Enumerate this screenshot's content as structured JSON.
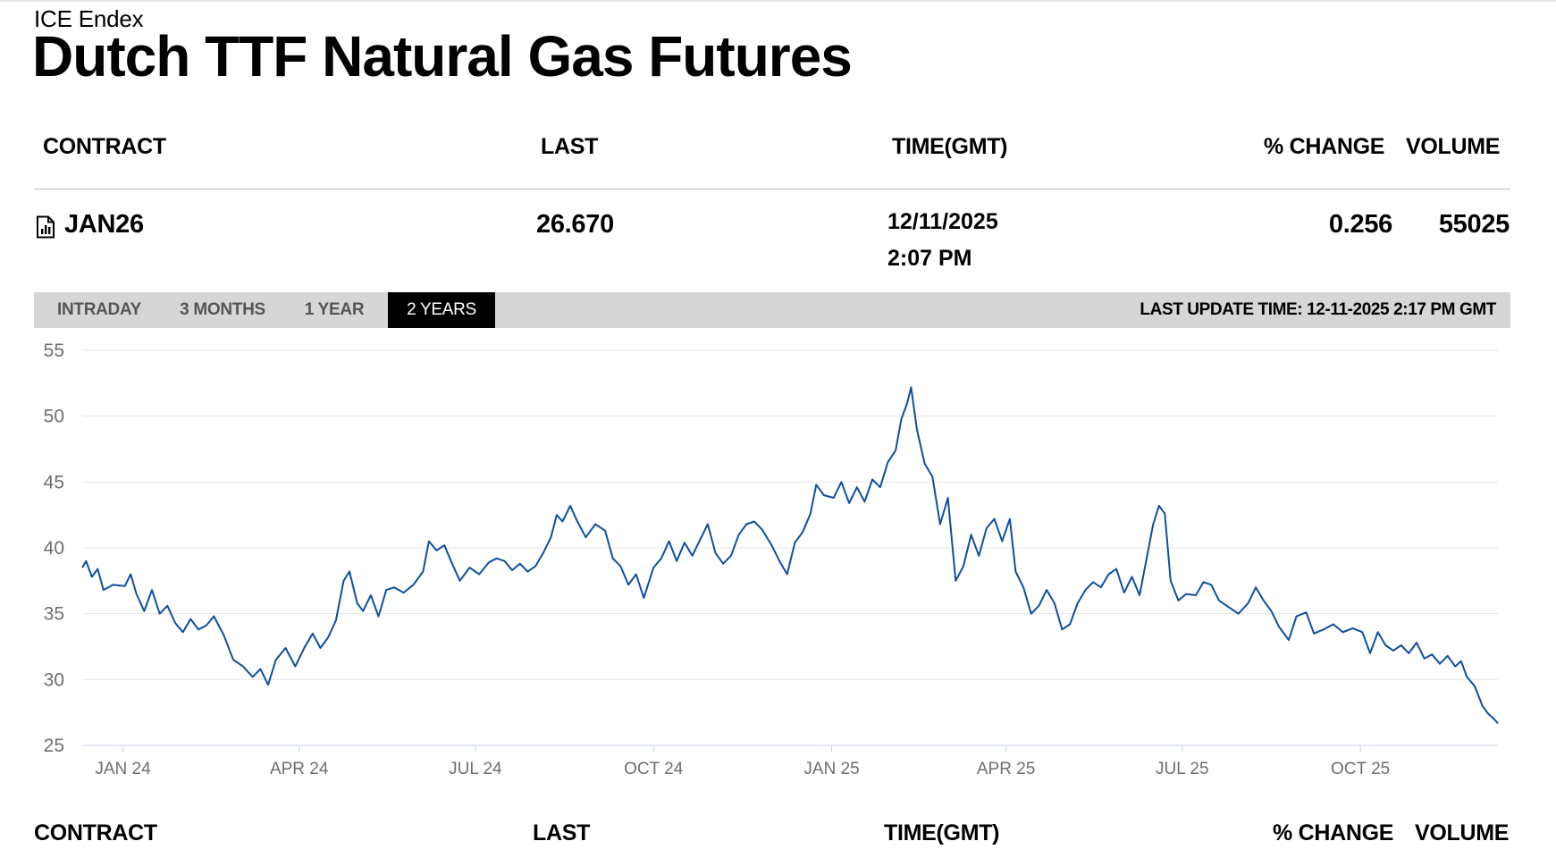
{
  "header": {
    "exchange": "ICE Endex",
    "title": "Dutch TTF Natural Gas Futures"
  },
  "table": {
    "columns": {
      "contract": "CONTRACT",
      "last": "LAST",
      "time": "TIME(GMT)",
      "change": "% CHANGE",
      "volume": "VOLUME"
    },
    "row": {
      "contract": "JAN26",
      "last": "26.670",
      "date": "12/11/2025",
      "time": "2:07 PM",
      "change": "0.256",
      "volume": "55025"
    }
  },
  "tabs": [
    {
      "label": "INTRADAY",
      "active": false
    },
    {
      "label": "3 MONTHS",
      "active": false
    },
    {
      "label": "1 YEAR",
      "active": false
    },
    {
      "label": "2 YEARS",
      "active": true
    }
  ],
  "last_update": "LAST UPDATE TIME: 12-11-2025 2:17 PM GMT",
  "footer_table": {
    "contract": "CONTRACT",
    "last": "LAST",
    "time": "TIME(GMT)",
    "change": "% CHANGE",
    "volume": "VOLUME"
  },
  "chart_data": {
    "type": "line",
    "ylim": [
      25,
      55
    ],
    "yticks": [
      55,
      50,
      45,
      40,
      35,
      30,
      25
    ],
    "xlim": [
      "2023-12-11",
      "2025-12-11"
    ],
    "xticks": [
      {
        "label": "JAN 24",
        "date": "2024-01-01"
      },
      {
        "label": "APR 24",
        "date": "2024-04-01"
      },
      {
        "label": "JUL 24",
        "date": "2024-07-01"
      },
      {
        "label": "OCT 24",
        "date": "2024-10-01"
      },
      {
        "label": "JAN 25",
        "date": "2025-01-01"
      },
      {
        "label": "APR 25",
        "date": "2025-04-01"
      },
      {
        "label": "JUL 25",
        "date": "2025-07-01"
      },
      {
        "label": "OCT 25",
        "date": "2025-10-01"
      }
    ],
    "grid": true,
    "line_color": "#0e4fa0",
    "series": [
      {
        "points": [
          [
            "2023-12-11",
            38.5
          ],
          [
            "2023-12-13",
            39.0
          ],
          [
            "2023-12-16",
            37.8
          ],
          [
            "2023-12-19",
            38.4
          ],
          [
            "2023-12-22",
            36.8
          ],
          [
            "2023-12-27",
            37.2
          ],
          [
            "2024-01-02",
            37.1
          ],
          [
            "2024-01-05",
            38.0
          ],
          [
            "2024-01-08",
            36.5
          ],
          [
            "2024-01-12",
            35.2
          ],
          [
            "2024-01-16",
            36.8
          ],
          [
            "2024-01-20",
            35.0
          ],
          [
            "2024-01-24",
            35.6
          ],
          [
            "2024-01-28",
            34.3
          ],
          [
            "2024-02-01",
            33.6
          ],
          [
            "2024-02-05",
            34.6
          ],
          [
            "2024-02-09",
            33.8
          ],
          [
            "2024-02-13",
            34.1
          ],
          [
            "2024-02-17",
            34.8
          ],
          [
            "2024-02-22",
            33.4
          ],
          [
            "2024-02-27",
            31.5
          ],
          [
            "2024-03-03",
            31.0
          ],
          [
            "2024-03-08",
            30.2
          ],
          [
            "2024-03-12",
            30.8
          ],
          [
            "2024-03-16",
            29.6
          ],
          [
            "2024-03-20",
            31.5
          ],
          [
            "2024-03-25",
            32.4
          ],
          [
            "2024-03-30",
            31.0
          ],
          [
            "2024-04-04",
            32.5
          ],
          [
            "2024-04-08",
            33.5
          ],
          [
            "2024-04-12",
            32.4
          ],
          [
            "2024-04-16",
            33.2
          ],
          [
            "2024-04-20",
            34.5
          ],
          [
            "2024-04-24",
            37.5
          ],
          [
            "2024-04-27",
            38.2
          ],
          [
            "2024-05-01",
            35.8
          ],
          [
            "2024-05-04",
            35.2
          ],
          [
            "2024-05-08",
            36.4
          ],
          [
            "2024-05-12",
            34.8
          ],
          [
            "2024-05-16",
            36.8
          ],
          [
            "2024-05-20",
            37.0
          ],
          [
            "2024-05-25",
            36.6
          ],
          [
            "2024-05-30",
            37.2
          ],
          [
            "2024-06-04",
            38.2
          ],
          [
            "2024-06-07",
            40.5
          ],
          [
            "2024-06-11",
            39.8
          ],
          [
            "2024-06-15",
            40.2
          ],
          [
            "2024-06-19",
            38.8
          ],
          [
            "2024-06-23",
            37.5
          ],
          [
            "2024-06-28",
            38.5
          ],
          [
            "2024-07-03",
            38.0
          ],
          [
            "2024-07-08",
            38.9
          ],
          [
            "2024-07-12",
            39.2
          ],
          [
            "2024-07-16",
            39.0
          ],
          [
            "2024-07-20",
            38.3
          ],
          [
            "2024-07-24",
            38.8
          ],
          [
            "2024-07-28",
            38.2
          ],
          [
            "2024-08-01",
            38.6
          ],
          [
            "2024-08-05",
            39.6
          ],
          [
            "2024-08-09",
            40.8
          ],
          [
            "2024-08-12",
            42.5
          ],
          [
            "2024-08-15",
            42.0
          ],
          [
            "2024-08-19",
            43.2
          ],
          [
            "2024-08-22",
            42.2
          ],
          [
            "2024-08-27",
            40.8
          ],
          [
            "2024-09-01",
            41.8
          ],
          [
            "2024-09-06",
            41.3
          ],
          [
            "2024-09-10",
            39.2
          ],
          [
            "2024-09-14",
            38.6
          ],
          [
            "2024-09-18",
            37.2
          ],
          [
            "2024-09-22",
            38.0
          ],
          [
            "2024-09-26",
            36.2
          ],
          [
            "2024-10-01",
            38.5
          ],
          [
            "2024-10-05",
            39.2
          ],
          [
            "2024-10-09",
            40.5
          ],
          [
            "2024-10-13",
            39.0
          ],
          [
            "2024-10-17",
            40.4
          ],
          [
            "2024-10-21",
            39.4
          ],
          [
            "2024-10-25",
            40.6
          ],
          [
            "2024-10-29",
            41.8
          ],
          [
            "2024-11-02",
            39.6
          ],
          [
            "2024-11-06",
            38.8
          ],
          [
            "2024-11-10",
            39.4
          ],
          [
            "2024-11-14",
            41.0
          ],
          [
            "2024-11-18",
            41.8
          ],
          [
            "2024-11-22",
            42.0
          ],
          [
            "2024-11-26",
            41.4
          ],
          [
            "2024-12-01",
            40.2
          ],
          [
            "2024-12-05",
            39.0
          ],
          [
            "2024-12-09",
            38.0
          ],
          [
            "2024-12-13",
            40.4
          ],
          [
            "2024-12-17",
            41.2
          ],
          [
            "2024-12-21",
            42.6
          ],
          [
            "2024-12-24",
            44.8
          ],
          [
            "2024-12-28",
            44.0
          ],
          [
            "2025-01-02",
            43.8
          ],
          [
            "2025-01-06",
            45.0
          ],
          [
            "2025-01-10",
            43.4
          ],
          [
            "2025-01-14",
            44.6
          ],
          [
            "2025-01-18",
            43.5
          ],
          [
            "2025-01-22",
            45.2
          ],
          [
            "2025-01-26",
            44.6
          ],
          [
            "2025-01-30",
            46.5
          ],
          [
            "2025-02-03",
            47.4
          ],
          [
            "2025-02-06",
            49.8
          ],
          [
            "2025-02-09",
            51.0
          ],
          [
            "2025-02-11",
            52.2
          ],
          [
            "2025-02-14",
            49.0
          ],
          [
            "2025-02-18",
            46.4
          ],
          [
            "2025-02-22",
            45.4
          ],
          [
            "2025-02-26",
            41.8
          ],
          [
            "2025-03-02",
            43.8
          ],
          [
            "2025-03-06",
            37.5
          ],
          [
            "2025-03-10",
            38.6
          ],
          [
            "2025-03-14",
            41.0
          ],
          [
            "2025-03-18",
            39.4
          ],
          [
            "2025-03-22",
            41.5
          ],
          [
            "2025-03-26",
            42.2
          ],
          [
            "2025-03-30",
            40.5
          ],
          [
            "2025-04-03",
            42.2
          ],
          [
            "2025-04-06",
            38.2
          ],
          [
            "2025-04-10",
            37.0
          ],
          [
            "2025-04-14",
            35.0
          ],
          [
            "2025-04-18",
            35.6
          ],
          [
            "2025-04-22",
            36.8
          ],
          [
            "2025-04-26",
            35.8
          ],
          [
            "2025-04-30",
            33.8
          ],
          [
            "2025-05-04",
            34.2
          ],
          [
            "2025-05-08",
            35.8
          ],
          [
            "2025-05-12",
            36.8
          ],
          [
            "2025-05-16",
            37.4
          ],
          [
            "2025-05-20",
            37.0
          ],
          [
            "2025-05-24",
            38.0
          ],
          [
            "2025-05-28",
            38.4
          ],
          [
            "2025-06-01",
            36.6
          ],
          [
            "2025-06-05",
            37.8
          ],
          [
            "2025-06-09",
            36.4
          ],
          [
            "2025-06-13",
            39.5
          ],
          [
            "2025-06-16",
            41.8
          ],
          [
            "2025-06-19",
            43.2
          ],
          [
            "2025-06-22",
            42.6
          ],
          [
            "2025-06-25",
            37.5
          ],
          [
            "2025-06-29",
            36.0
          ],
          [
            "2025-07-03",
            36.5
          ],
          [
            "2025-07-08",
            36.4
          ],
          [
            "2025-07-12",
            37.4
          ],
          [
            "2025-07-16",
            37.2
          ],
          [
            "2025-07-20",
            36.0
          ],
          [
            "2025-07-25",
            35.5
          ],
          [
            "2025-07-30",
            35.0
          ],
          [
            "2025-08-04",
            35.8
          ],
          [
            "2025-08-08",
            37.0
          ],
          [
            "2025-08-12",
            36.0
          ],
          [
            "2025-08-16",
            35.2
          ],
          [
            "2025-08-20",
            34.0
          ],
          [
            "2025-08-25",
            33.0
          ],
          [
            "2025-08-29",
            34.8
          ],
          [
            "2025-09-03",
            35.1
          ],
          [
            "2025-09-07",
            33.5
          ],
          [
            "2025-09-12",
            33.8
          ],
          [
            "2025-09-17",
            34.2
          ],
          [
            "2025-09-22",
            33.6
          ],
          [
            "2025-09-27",
            33.9
          ],
          [
            "2025-10-02",
            33.6
          ],
          [
            "2025-10-06",
            32.0
          ],
          [
            "2025-10-10",
            33.6
          ],
          [
            "2025-10-14",
            32.6
          ],
          [
            "2025-10-18",
            32.2
          ],
          [
            "2025-10-22",
            32.6
          ],
          [
            "2025-10-26",
            32.0
          ],
          [
            "2025-10-30",
            32.8
          ],
          [
            "2025-11-03",
            31.6
          ],
          [
            "2025-11-07",
            31.9
          ],
          [
            "2025-11-11",
            31.2
          ],
          [
            "2025-11-15",
            31.8
          ],
          [
            "2025-11-19",
            31.0
          ],
          [
            "2025-11-22",
            31.4
          ],
          [
            "2025-11-25",
            30.2
          ],
          [
            "2025-11-29",
            29.5
          ],
          [
            "2025-12-03",
            28.0
          ],
          [
            "2025-12-06",
            27.4
          ],
          [
            "2025-12-09",
            27.0
          ],
          [
            "2025-12-11",
            26.67
          ]
        ]
      }
    ]
  }
}
